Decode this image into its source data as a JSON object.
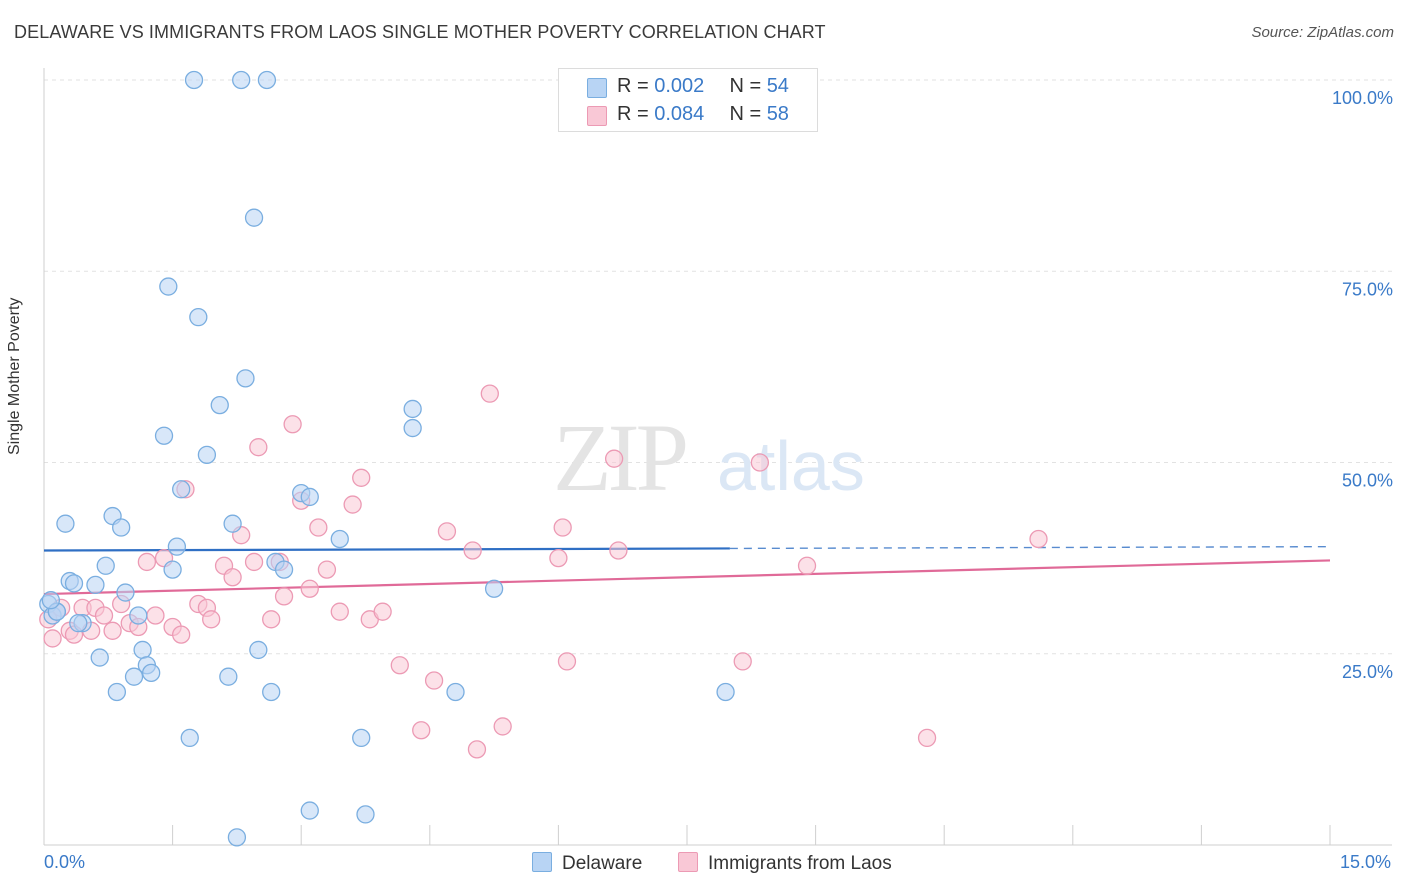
{
  "title": "DELAWARE VS IMMIGRANTS FROM LAOS SINGLE MOTHER POVERTY CORRELATION CHART",
  "source": "Source: ZipAtlas.com",
  "watermark": {
    "zip": "ZIP",
    "atlas": "atlas"
  },
  "colors": {
    "delaware_fill": "#b8d4f4",
    "delaware_stroke": "#7aaee0",
    "delaware_line": "#2f6fc4",
    "laos_fill": "#f9c8d6",
    "laos_stroke": "#ec9ab4",
    "laos_line": "#e06a98",
    "axis_text": "#3a7ac8",
    "grid": "#e2e2e2"
  },
  "legend_top": {
    "rows": [
      {
        "r_label": "R = ",
        "r_value": "0.002",
        "n_label": "N = ",
        "n_value": "54"
      },
      {
        "r_label": "R = ",
        "r_value": "0.084",
        "n_label": "N = ",
        "n_value": "58"
      }
    ]
  },
  "legend_bottom": {
    "items": [
      "Delaware",
      "Immigrants from Laos"
    ]
  },
  "chart_data": {
    "type": "scatter",
    "title": "DELAWARE VS IMMIGRANTS FROM LAOS SINGLE MOTHER POVERTY CORRELATION CHART",
    "xlabel": "",
    "ylabel": "Single Mother Poverty",
    "xlim": [
      0,
      15
    ],
    "ylim": [
      0,
      100
    ],
    "x_tick_labels": [
      "0.0%",
      "15.0%"
    ],
    "y_ticks": [
      25,
      50,
      75,
      100
    ],
    "y_tick_labels": [
      "25.0%",
      "50.0%",
      "75.0%",
      "100.0%"
    ],
    "grid": true,
    "series": [
      {
        "name": "Delaware",
        "points": [
          [
            0.05,
            31.5
          ],
          [
            0.1,
            30
          ],
          [
            0.15,
            30.5
          ],
          [
            0.25,
            42
          ],
          [
            0.3,
            34.5
          ],
          [
            0.35,
            34.2
          ],
          [
            0.45,
            29
          ],
          [
            0.6,
            34
          ],
          [
            0.65,
            24.5
          ],
          [
            0.72,
            36.5
          ],
          [
            0.8,
            43
          ],
          [
            0.85,
            20
          ],
          [
            0.9,
            41.5
          ],
          [
            0.95,
            33
          ],
          [
            1.05,
            22
          ],
          [
            1.1,
            30
          ],
          [
            1.15,
            25.5
          ],
          [
            1.2,
            23.5
          ],
          [
            1.25,
            22.5
          ],
          [
            1.4,
            53.5
          ],
          [
            1.45,
            73
          ],
          [
            1.5,
            36
          ],
          [
            1.55,
            39
          ],
          [
            1.6,
            46.5
          ],
          [
            1.7,
            14
          ],
          [
            1.75,
            100
          ],
          [
            1.8,
            69
          ],
          [
            1.9,
            51
          ],
          [
            2.05,
            57.5
          ],
          [
            2.15,
            22
          ],
          [
            2.2,
            42
          ],
          [
            2.25,
            1
          ],
          [
            2.3,
            100
          ],
          [
            2.35,
            61
          ],
          [
            2.45,
            82
          ],
          [
            2.5,
            25.5
          ],
          [
            2.6,
            100
          ],
          [
            2.65,
            20
          ],
          [
            2.7,
            37
          ],
          [
            2.8,
            36
          ],
          [
            3.0,
            46
          ],
          [
            3.1,
            4.5
          ],
          [
            3.1,
            45.5
          ],
          [
            3.45,
            40
          ],
          [
            3.7,
            14
          ],
          [
            3.75,
            4
          ],
          [
            4.3,
            57
          ],
          [
            4.3,
            54.5
          ],
          [
            4.8,
            20
          ],
          [
            5.25,
            33.5
          ],
          [
            7.95,
            20
          ],
          [
            0.4,
            29
          ],
          [
            0.15,
            30.5
          ],
          [
            0.08,
            32
          ]
        ]
      },
      {
        "name": "Immigrants from Laos",
        "points": [
          [
            0.05,
            29.5
          ],
          [
            0.1,
            27
          ],
          [
            0.2,
            31
          ],
          [
            0.3,
            28
          ],
          [
            0.35,
            27.5
          ],
          [
            0.45,
            31
          ],
          [
            0.55,
            28
          ],
          [
            0.6,
            31
          ],
          [
            0.7,
            30
          ],
          [
            0.8,
            28
          ],
          [
            0.9,
            31.5
          ],
          [
            1.0,
            29
          ],
          [
            1.1,
            28.5
          ],
          [
            1.2,
            37
          ],
          [
            1.3,
            30
          ],
          [
            1.4,
            37.5
          ],
          [
            1.5,
            28.5
          ],
          [
            1.6,
            27.5
          ],
          [
            1.65,
            46.5
          ],
          [
            1.8,
            31.5
          ],
          [
            1.9,
            31
          ],
          [
            1.95,
            29.5
          ],
          [
            2.1,
            36.5
          ],
          [
            2.2,
            35
          ],
          [
            2.3,
            40.5
          ],
          [
            2.45,
            37
          ],
          [
            2.5,
            52
          ],
          [
            2.65,
            29.5
          ],
          [
            2.75,
            37
          ],
          [
            2.8,
            32.5
          ],
          [
            2.9,
            55
          ],
          [
            3.0,
            45
          ],
          [
            3.1,
            33.5
          ],
          [
            3.2,
            41.5
          ],
          [
            3.3,
            36
          ],
          [
            3.45,
            30.5
          ],
          [
            3.6,
            44.5
          ],
          [
            3.7,
            48
          ],
          [
            3.8,
            29.5
          ],
          [
            3.95,
            30.5
          ],
          [
            4.15,
            23.5
          ],
          [
            4.4,
            15
          ],
          [
            4.55,
            21.5
          ],
          [
            4.7,
            41
          ],
          [
            5.0,
            38.5
          ],
          [
            5.05,
            12.5
          ],
          [
            5.2,
            59
          ],
          [
            5.35,
            15.5
          ],
          [
            6.0,
            37.5
          ],
          [
            6.05,
            41.5
          ],
          [
            6.1,
            24
          ],
          [
            6.65,
            50.5
          ],
          [
            6.7,
            38.5
          ],
          [
            8.15,
            24
          ],
          [
            8.35,
            50
          ],
          [
            8.9,
            36.5
          ],
          [
            10.3,
            14
          ],
          [
            11.6,
            40
          ]
        ]
      }
    ],
    "trendlines": [
      {
        "name": "Delaware",
        "from": [
          0,
          38.5
        ],
        "to": [
          15,
          39
        ],
        "solid_until_x": 8.0
      },
      {
        "name": "Immigrants from Laos",
        "from": [
          0,
          32.8
        ],
        "to": [
          15,
          37.2
        ]
      }
    ]
  }
}
